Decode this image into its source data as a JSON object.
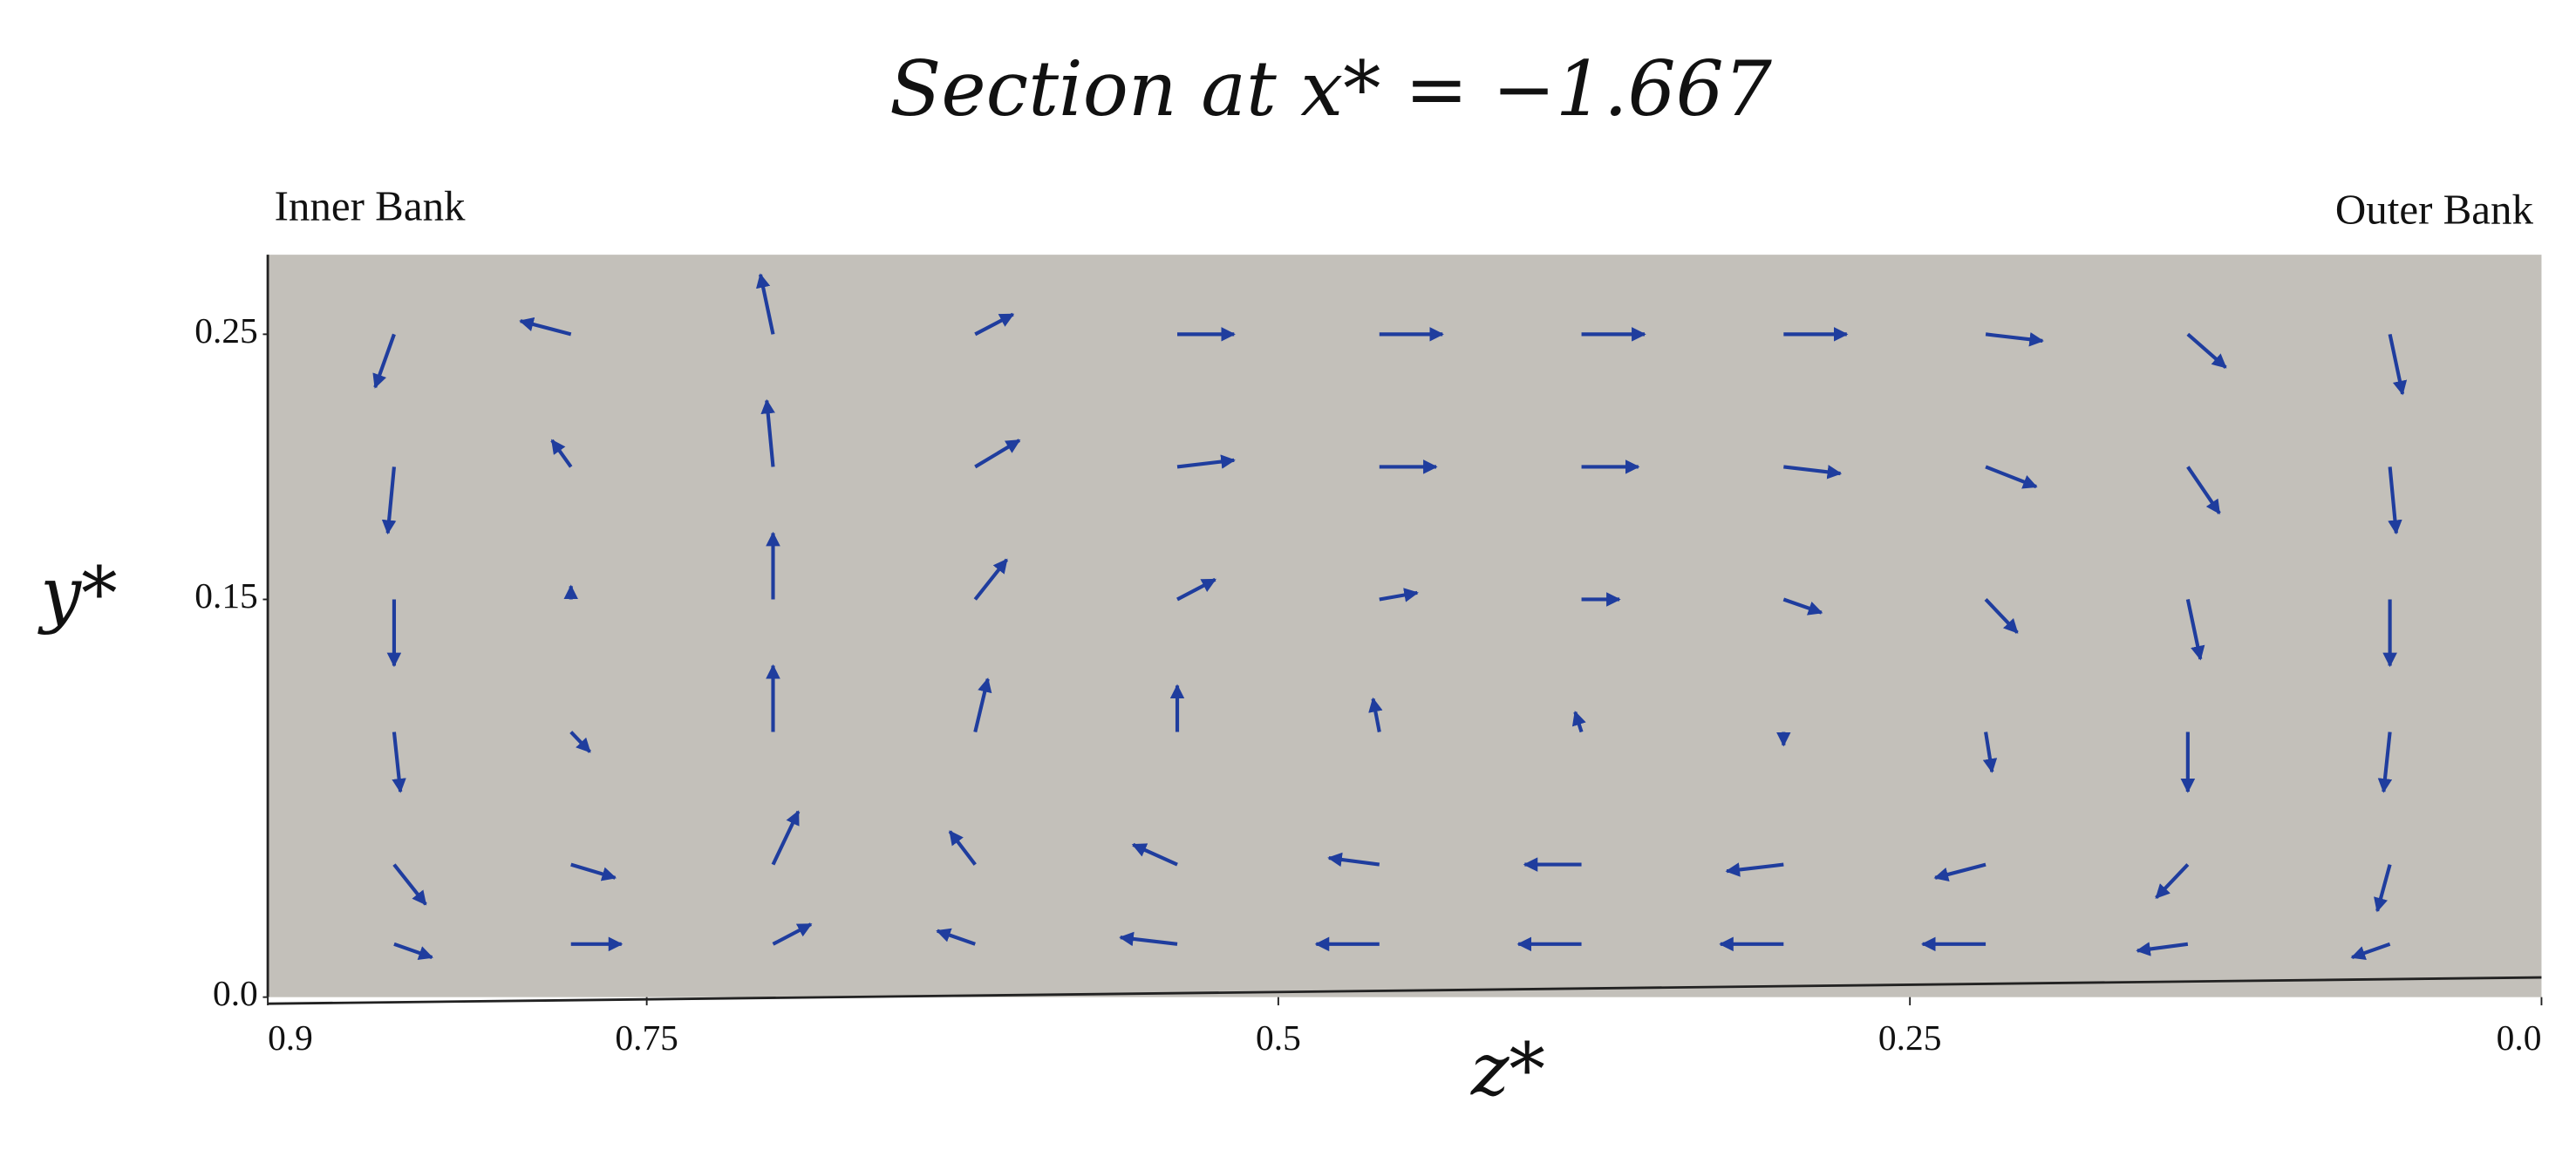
{
  "chart_data": {
    "type": "quiver",
    "title": "Section at x* = −1.667",
    "x_label": "z*",
    "y_label": "y*",
    "annotations": [
      "Inner Bank",
      "Outer Bank"
    ],
    "color": "#1f3d9e",
    "background": "#c3c0ba",
    "grid": false,
    "xlim": [
      0.9,
      0
    ],
    "ylim": [
      0,
      0.28
    ],
    "xticks": [
      0.9,
      0.75,
      0.5,
      0.25,
      {
        "value": 0,
        "label": "0.0"
      }
    ],
    "yticks": [
      {
        "value": 0,
        "label": "0.0"
      },
      0.15,
      0.25
    ],
    "x": [
      0.85,
      0.78,
      0.7,
      0.62,
      0.54,
      0.46,
      0.38,
      0.3,
      0.22,
      0.14,
      0.06,
      0.85,
      0.78,
      0.7,
      0.62,
      0.54,
      0.46,
      0.38,
      0.3,
      0.22,
      0.14,
      0.06,
      0.85,
      0.78,
      0.7,
      0.62,
      0.54,
      0.46,
      0.38,
      0.3,
      0.22,
      0.14,
      0.06,
      0.85,
      0.78,
      0.7,
      0.62,
      0.54,
      0.46,
      0.38,
      0.3,
      0.22,
      0.14,
      0.06,
      0.85,
      0.78,
      0.7,
      0.62,
      0.54,
      0.46,
      0.38,
      0.3,
      0.22,
      0.14,
      0.06,
      0.85,
      0.78,
      0.7,
      0.62,
      0.54,
      0.46,
      0.38,
      0.3,
      0.22,
      0.14,
      0.06
    ],
    "y": [
      0.25,
      0.25,
      0.25,
      0.25,
      0.25,
      0.25,
      0.25,
      0.25,
      0.25,
      0.25,
      0.25,
      0.2,
      0.2,
      0.2,
      0.2,
      0.2,
      0.2,
      0.2,
      0.2,
      0.2,
      0.2,
      0.2,
      0.15,
      0.15,
      0.15,
      0.15,
      0.15,
      0.15,
      0.15,
      0.15,
      0.15,
      0.15,
      0.15,
      0.1,
      0.1,
      0.1,
      0.1,
      0.1,
      0.1,
      0.1,
      0.1,
      0.1,
      0.1,
      0.1,
      0.05,
      0.05,
      0.05,
      0.05,
      0.05,
      0.05,
      0.05,
      0.05,
      0.05,
      0.05,
      0.05,
      0.02,
      0.02,
      0.02,
      0.02,
      0.02,
      0.02,
      0.02,
      0.02,
      0.02,
      0.02,
      0.02
    ],
    "u": [
      0.3,
      0.8,
      0.2,
      -0.6,
      -0.9,
      -1,
      -1,
      -1,
      -0.9,
      -0.6,
      -0.2,
      0.1,
      0.3,
      0.1,
      -0.7,
      -0.9,
      -0.9,
      -0.9,
      -0.9,
      -0.8,
      -0.5,
      -0.1,
      0,
      0,
      0,
      -0.5,
      -0.6,
      -0.6,
      -0.6,
      -0.6,
      -0.5,
      -0.2,
      0,
      -0.1,
      -0.3,
      0,
      -0.2,
      0,
      0.1,
      0.1,
      0,
      -0.1,
      0,
      0.1,
      -0.5,
      -0.7,
      -0.4,
      0.4,
      0.7,
      0.8,
      0.9,
      0.9,
      0.8,
      0.5,
      0.2,
      -0.6,
      -0.8,
      -0.6,
      0.6,
      0.9,
      1,
      1,
      1,
      1,
      0.8,
      0.6
    ],
    "v": [
      -0.8,
      0.2,
      0.9,
      0.3,
      0,
      0,
      0,
      0,
      -0.1,
      -0.5,
      -0.9,
      -1,
      0.4,
      1,
      0.4,
      0.1,
      0,
      0,
      -0.1,
      -0.3,
      -0.7,
      -1,
      -1,
      0.2,
      1,
      0.6,
      0.3,
      0.1,
      0,
      -0.2,
      -0.5,
      -0.9,
      -1,
      -0.9,
      -0.3,
      1,
      0.8,
      0.7,
      0.5,
      0.3,
      -0.2,
      -0.6,
      -0.9,
      -0.9,
      -0.6,
      -0.2,
      0.8,
      0.5,
      0.3,
      0.1,
      0,
      -0.1,
      -0.2,
      -0.5,
      -0.7,
      -0.2,
      0,
      0.3,
      0.2,
      0.1,
      0,
      0,
      0,
      0,
      -0.1,
      -0.2
    ]
  }
}
